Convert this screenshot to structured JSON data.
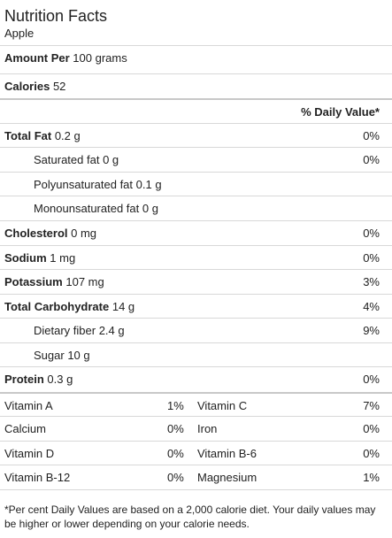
{
  "title": "Nutrition Facts",
  "subtitle": "Apple",
  "serving": {
    "label": "Amount Per",
    "value": "100 grams"
  },
  "calories": {
    "label": "Calories",
    "value": "52"
  },
  "dv_header": "% Daily Value*",
  "nutrients": {
    "total_fat": {
      "label": "Total Fat",
      "amount": "0.2 g",
      "pct": "0%"
    },
    "saturated_fat": {
      "label": "Saturated fat",
      "amount": "0 g",
      "pct": "0%"
    },
    "poly_fat": {
      "label": "Polyunsaturated fat",
      "amount": "0.1 g",
      "pct": ""
    },
    "mono_fat": {
      "label": "Monounsaturated fat",
      "amount": "0 g",
      "pct": ""
    },
    "cholesterol": {
      "label": "Cholesterol",
      "amount": "0 mg",
      "pct": "0%"
    },
    "sodium": {
      "label": "Sodium",
      "amount": "1 mg",
      "pct": "0%"
    },
    "potassium": {
      "label": "Potassium",
      "amount": "107 mg",
      "pct": "3%"
    },
    "carbs": {
      "label": "Total Carbohydrate",
      "amount": "14 g",
      "pct": "4%"
    },
    "fiber": {
      "label": "Dietary fiber",
      "amount": "2.4 g",
      "pct": "9%"
    },
    "sugar": {
      "label": "Sugar",
      "amount": "10 g",
      "pct": ""
    },
    "protein": {
      "label": "Protein",
      "amount": "0.3 g",
      "pct": "0%"
    }
  },
  "vitamins": [
    {
      "left_name": "Vitamin A",
      "left_pct": "1%",
      "right_name": "Vitamin C",
      "right_pct": "7%"
    },
    {
      "left_name": "Calcium",
      "left_pct": "0%",
      "right_name": "Iron",
      "right_pct": "0%"
    },
    {
      "left_name": "Vitamin D",
      "left_pct": "0%",
      "right_name": "Vitamin B-6",
      "right_pct": "0%"
    },
    {
      "left_name": "Vitamin B-12",
      "left_pct": "0%",
      "right_name": "Magnesium",
      "right_pct": "1%"
    }
  ],
  "footnote": "*Per cent Daily Values are based on a 2,000 calorie diet. Your daily values may be higher or lower depending on your calorie needs."
}
